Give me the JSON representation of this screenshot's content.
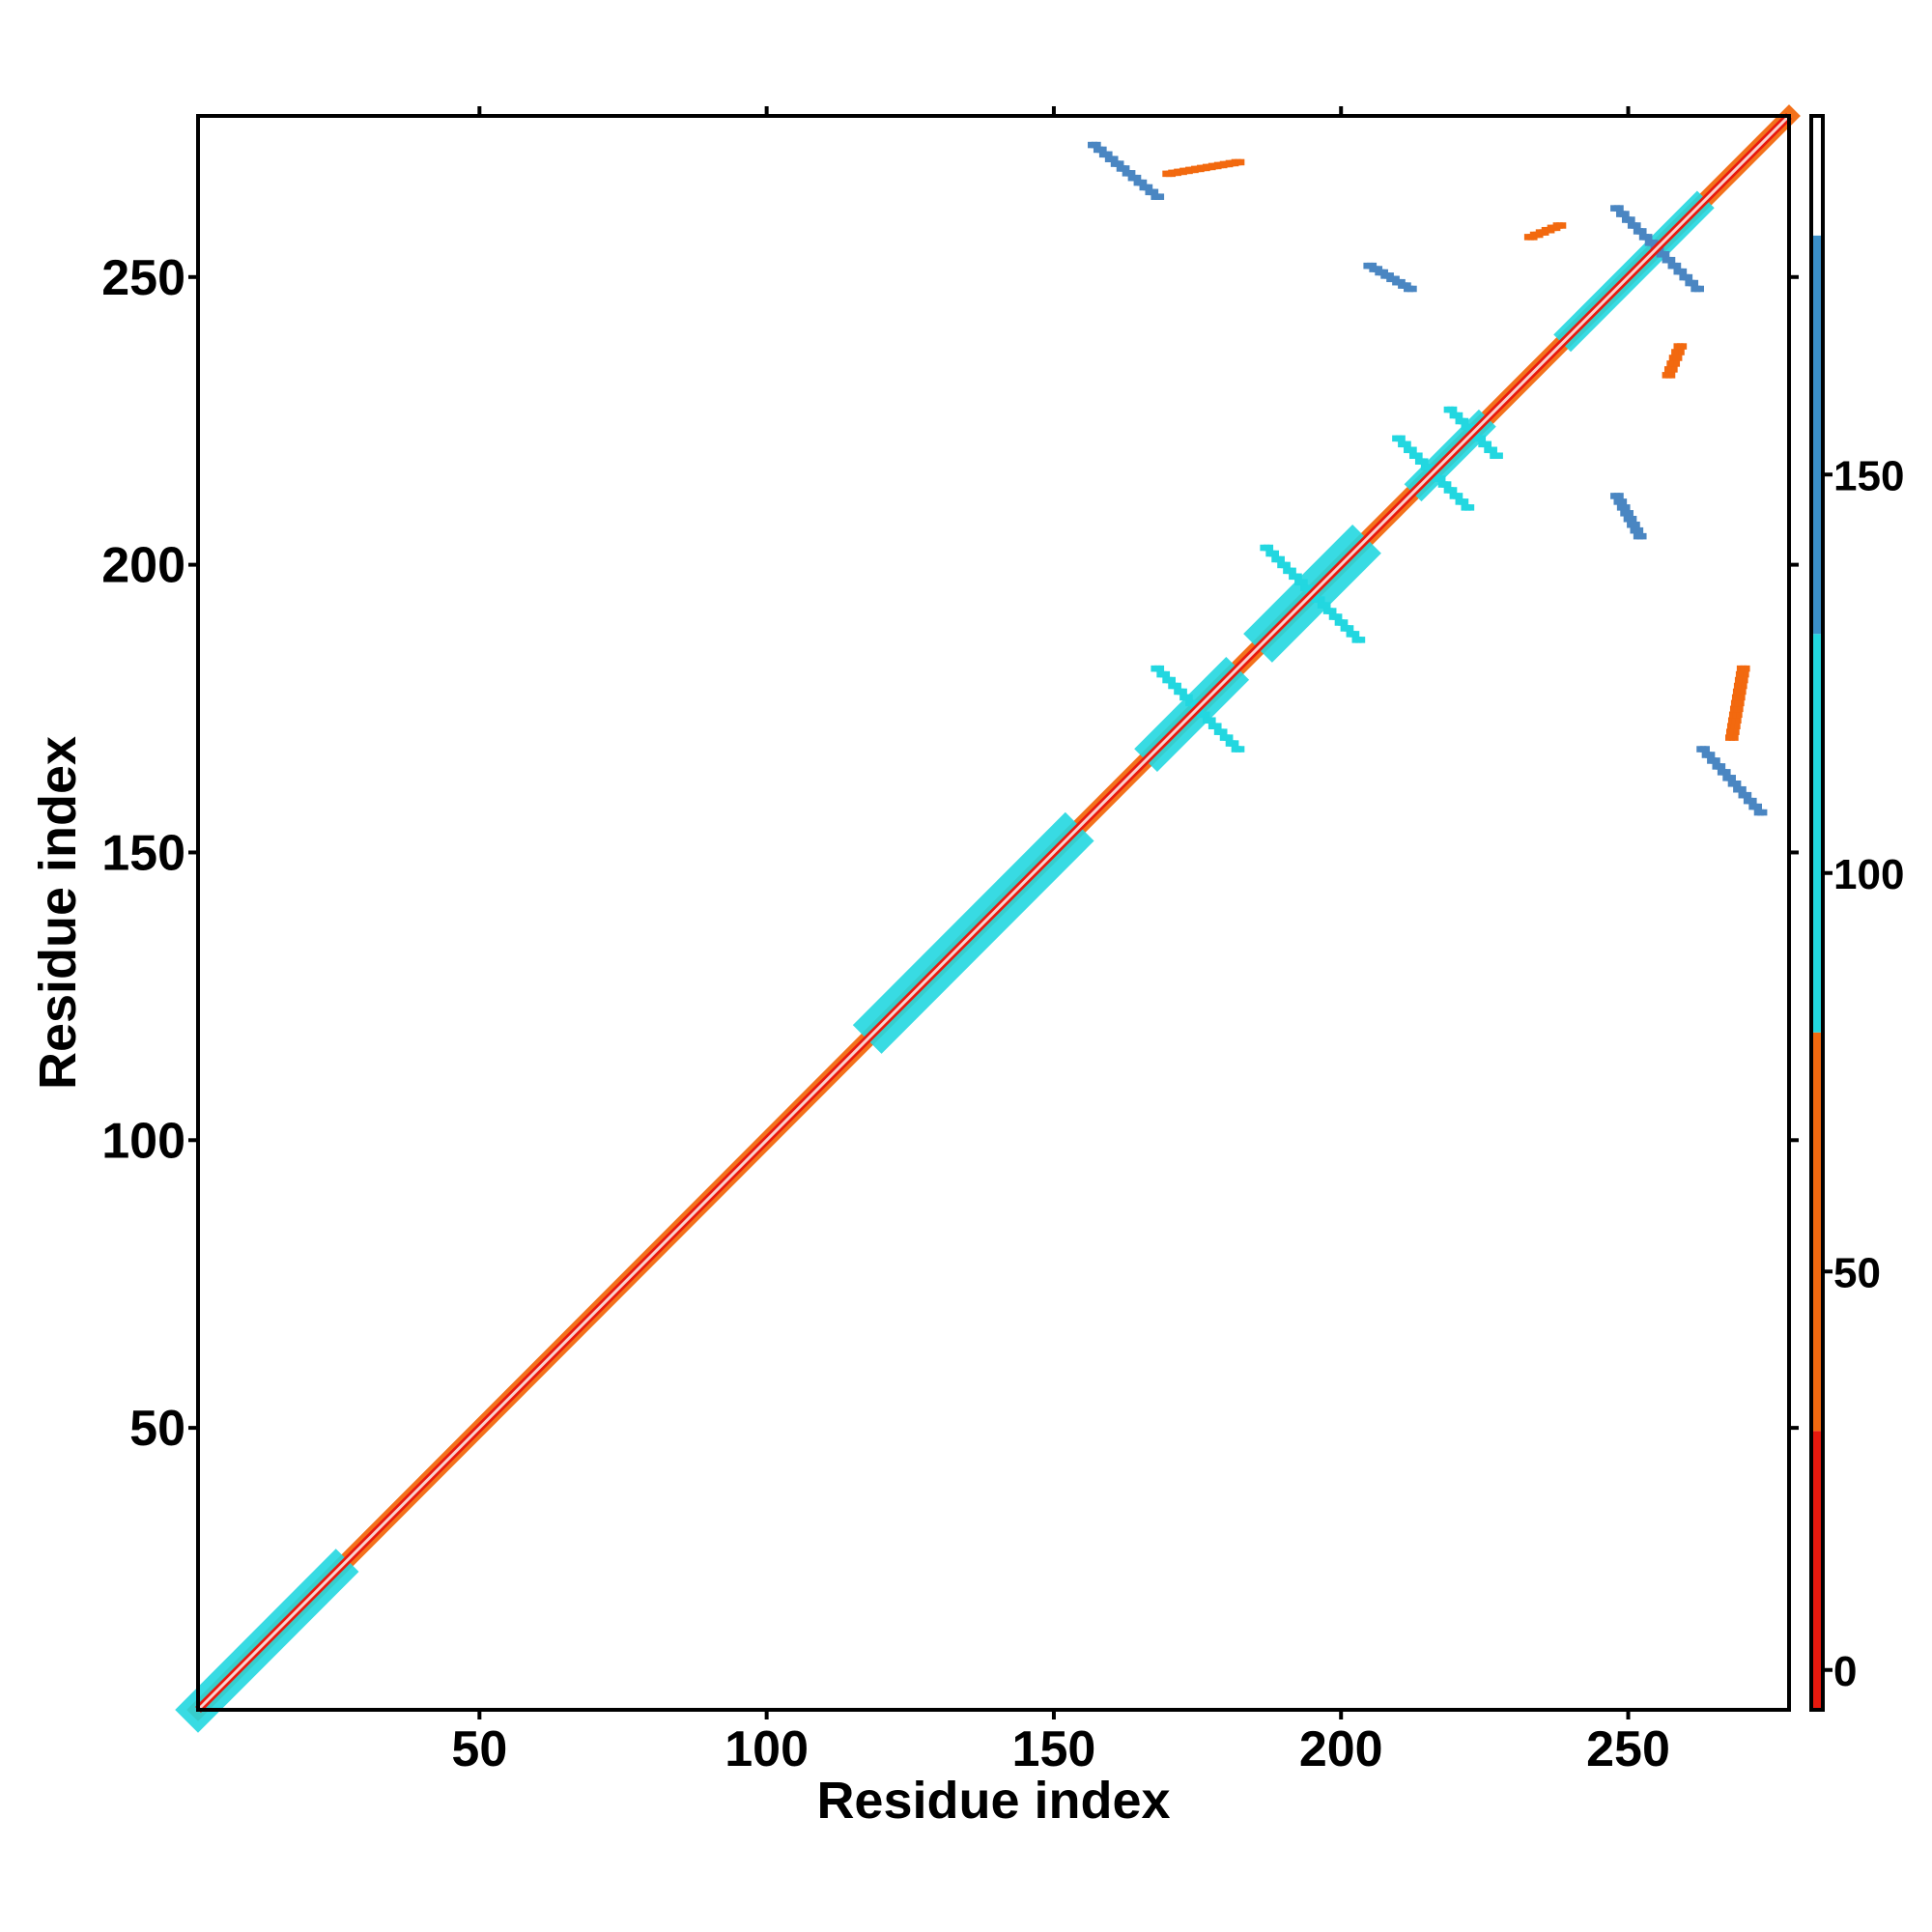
{
  "chart_data": {
    "type": "heatmap",
    "title": "",
    "xlabel": "Residue index",
    "ylabel": "Residue index",
    "xlim": [
      1,
      278
    ],
    "ylim": [
      1,
      278
    ],
    "x_ticks": [
      50,
      100,
      150,
      200,
      250
    ],
    "y_ticks": [
      50,
      100,
      150,
      200,
      250
    ],
    "grid": false,
    "colorbar": {
      "ticks": [
        0,
        50,
        100,
        150
      ],
      "range": [
        -5,
        195
      ],
      "bands": [
        {
          "from": -5,
          "to": 30,
          "color": "#e8190e"
        },
        {
          "from": 30,
          "to": 80,
          "color": "#f2690f"
        },
        {
          "from": 80,
          "to": 130,
          "color": "#22d7e0"
        },
        {
          "from": 130,
          "to": 180,
          "color": "#3a8fc9"
        },
        {
          "from": 180,
          "to": 195,
          "color": "#ffffff"
        }
      ]
    },
    "colors": {
      "red": "#e8190e",
      "orange": "#f2690f",
      "amber": "#f4a010",
      "cyan": "#22d7e0",
      "blue": "#4a86c2"
    },
    "features": [
      {
        "kind": "diagonal",
        "from": 1,
        "to": 278,
        "halfwidth": 2,
        "color": "orange"
      },
      {
        "kind": "diagonal",
        "from": 1,
        "to": 25,
        "halfwidth": 4,
        "color": "cyan"
      },
      {
        "kind": "diagonal",
        "from": 120,
        "to": 152,
        "halfwidth": 5,
        "color": "cyan"
      },
      {
        "kind": "diagonal",
        "from": 168,
        "to": 180,
        "halfwidth": 4,
        "color": "cyan"
      },
      {
        "kind": "diagonal",
        "from": 188,
        "to": 202,
        "halfwidth": 5,
        "color": "cyan"
      },
      {
        "kind": "diagonal",
        "from": 214,
        "to": 224,
        "halfwidth": 3,
        "color": "cyan"
      },
      {
        "kind": "diagonal",
        "from": 240,
        "to": 262,
        "halfwidth": 3,
        "color": "cyan"
      },
      {
        "kind": "anti",
        "x1": 157,
        "y1": 273,
        "x2": 168,
        "y2": 264,
        "color": "blue"
      },
      {
        "kind": "anti",
        "x1": 263,
        "y1": 168,
        "x2": 273,
        "y2": 157,
        "color": "blue"
      },
      {
        "kind": "anti",
        "x1": 205,
        "y1": 252,
        "x2": 212,
        "y2": 248,
        "color": "blue"
      },
      {
        "kind": "anti",
        "x1": 248,
        "y1": 212,
        "x2": 252,
        "y2": 205,
        "color": "blue"
      },
      {
        "kind": "anti",
        "x1": 210,
        "y1": 222,
        "x2": 222,
        "y2": 210,
        "color": "cyan"
      },
      {
        "kind": "anti",
        "x1": 248,
        "y1": 262,
        "x2": 262,
        "y2": 248,
        "color": "blue"
      },
      {
        "kind": "anti",
        "x1": 187,
        "y1": 203,
        "x2": 203,
        "y2": 187,
        "color": "cyan"
      },
      {
        "kind": "anti",
        "x1": 168,
        "y1": 182,
        "x2": 182,
        "y2": 168,
        "color": "cyan"
      },
      {
        "kind": "anti",
        "x1": 219,
        "y1": 227,
        "x2": 227,
        "y2": 219,
        "color": "cyan"
      },
      {
        "kind": "anti",
        "x1": 170,
        "y1": 268,
        "x2": 182,
        "y2": 270,
        "color": "orange"
      },
      {
        "kind": "anti",
        "x1": 268,
        "y1": 170,
        "x2": 270,
        "y2": 182,
        "color": "orange"
      },
      {
        "kind": "anti",
        "x1": 233,
        "y1": 257,
        "x2": 238,
        "y2": 259,
        "color": "orange"
      },
      {
        "kind": "anti",
        "x1": 257,
        "y1": 233,
        "x2": 259,
        "y2": 238,
        "color": "orange"
      }
    ]
  }
}
